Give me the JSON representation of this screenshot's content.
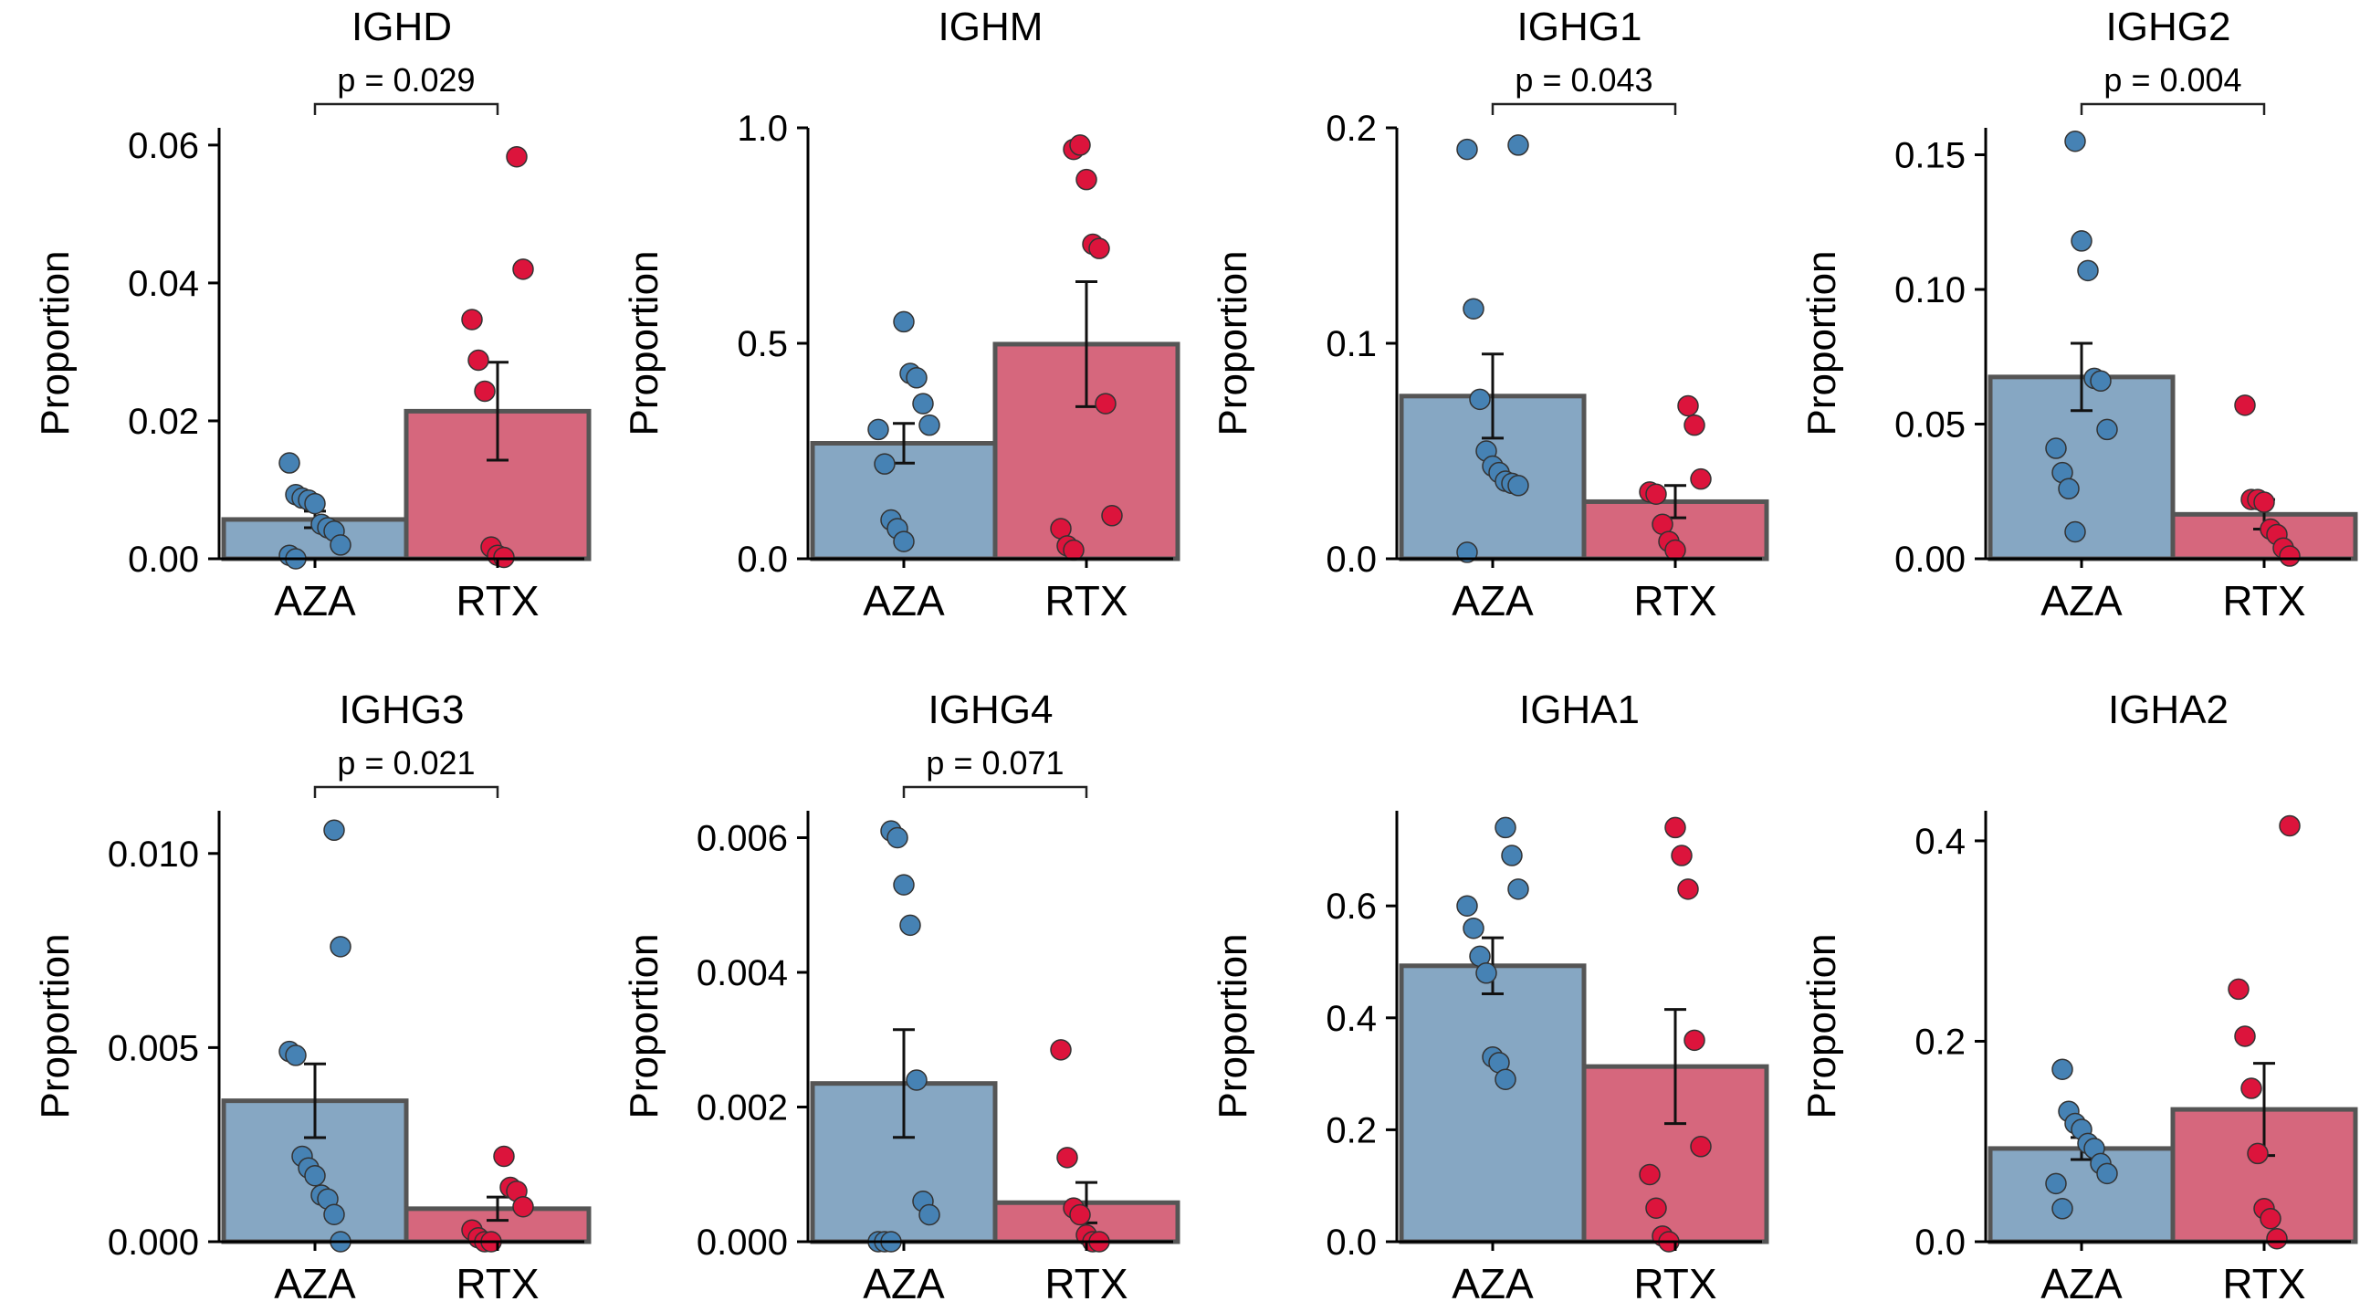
{
  "figure": {
    "y_axis_label": "Proportion",
    "groups": [
      "AZA",
      "RTX"
    ],
    "group_colors": {
      "AZA": "#86a7c3",
      "RTX": "#d6677d"
    },
    "point_colors": {
      "AZA": "#4682b4",
      "RTX": "#dc143c"
    },
    "bar_edge_color": "#555555"
  },
  "chart_data": [
    {
      "type": "bar",
      "title": "IGHD",
      "categories": [
        "AZA",
        "RTX"
      ],
      "values": [
        0.0057,
        0.0214
      ],
      "errors": [
        0.0012,
        0.0071
      ],
      "points": [
        [
          0.0139,
          0.0093,
          0.0088,
          0.0085,
          0.008,
          0.005,
          0.0045,
          0.004,
          0.002,
          0.0005,
          0.0
        ],
        [
          0.0583,
          0.042,
          0.0347,
          0.0288,
          0.0243,
          0.0017,
          0.0005,
          0.0002
        ]
      ],
      "ylim": [
        0,
        0.0625
      ],
      "ticks": [
        0,
        0.02,
        0.04,
        0.06
      ],
      "tick_labels": [
        "0.00",
        "0.02",
        "0.04",
        "0.06"
      ],
      "ylabel": "Proportion",
      "pvalue": "p = 0.029"
    },
    {
      "type": "bar",
      "title": "IGHM",
      "categories": [
        "AZA",
        "RTX"
      ],
      "values": [
        0.268,
        0.498
      ],
      "errors": [
        0.046,
        0.145
      ],
      "points": [
        [
          0.55,
          0.43,
          0.42,
          0.36,
          0.31,
          0.3,
          0.22,
          0.09,
          0.07,
          0.04
        ],
        [
          0.95,
          0.96,
          0.88,
          0.73,
          0.72,
          0.36,
          0.1,
          0.07,
          0.03,
          0.02
        ]
      ],
      "ylim": [
        0,
        1.0
      ],
      "ticks": [
        0,
        0.5,
        1.0
      ],
      "tick_labels": [
        "0.0",
        "0.5",
        "1.0"
      ],
      "ylabel": "Proportion",
      "pvalue": ""
    },
    {
      "type": "bar",
      "title": "IGHG1",
      "categories": [
        "AZA",
        "RTX"
      ],
      "values": [
        0.0755,
        0.0265
      ],
      "errors": [
        0.0195,
        0.0075
      ],
      "points": [
        [
          0.192,
          0.19,
          0.116,
          0.074,
          0.05,
          0.043,
          0.04,
          0.036,
          0.035,
          0.034,
          0.003
        ],
        [
          0.071,
          0.062,
          0.037,
          0.031,
          0.03,
          0.016,
          0.008,
          0.004
        ]
      ],
      "ylim": [
        0,
        0.2
      ],
      "ticks": [
        0,
        0.1,
        0.2
      ],
      "tick_labels": [
        "0.0",
        "0.1",
        "0.2"
      ],
      "ylabel": "Proportion",
      "pvalue": "p = 0.043"
    },
    {
      "type": "bar",
      "title": "IGHG2",
      "categories": [
        "AZA",
        "RTX"
      ],
      "values": [
        0.0675,
        0.0165
      ],
      "errors": [
        0.0125,
        0.0055
      ],
      "points": [
        [
          0.155,
          0.118,
          0.107,
          0.067,
          0.066,
          0.048,
          0.041,
          0.032,
          0.026,
          0.01
        ],
        [
          0.057,
          0.022,
          0.022,
          0.021,
          0.011,
          0.009,
          0.004,
          0.001
        ]
      ],
      "ylim": [
        0,
        0.16
      ],
      "ticks": [
        0,
        0.05,
        0.1,
        0.15
      ],
      "tick_labels": [
        "0.00",
        "0.05",
        "0.10",
        "0.15"
      ],
      "ylabel": "Proportion",
      "pvalue": "p = 0.004"
    },
    {
      "type": "bar",
      "title": "IGHG3",
      "categories": [
        "AZA",
        "RTX"
      ],
      "values": [
        0.00363,
        0.00085
      ],
      "errors": [
        0.00095,
        0.0003
      ],
      "points": [
        [
          0.0106,
          0.0076,
          0.0049,
          0.0048,
          0.0022,
          0.0019,
          0.0017,
          0.0012,
          0.0011,
          0.0007,
          0.0
        ],
        [
          0.0022,
          0.0014,
          0.0013,
          0.0009,
          0.0003,
          0.0001,
          0.0,
          0.0
        ]
      ],
      "ylim": [
        0,
        0.0111
      ],
      "ticks": [
        0,
        0.005,
        0.01
      ],
      "tick_labels": [
        "0.000",
        "0.005",
        "0.010"
      ],
      "ylabel": "Proportion",
      "pvalue": "p = 0.021"
    },
    {
      "type": "bar",
      "title": "IGHG4",
      "categories": [
        "AZA",
        "RTX"
      ],
      "values": [
        0.00235,
        0.00058
      ],
      "errors": [
        0.0008,
        0.0003
      ],
      "points": [
        [
          0.0061,
          0.006,
          0.0053,
          0.0047,
          0.0024,
          0.0006,
          0.0004,
          0.0,
          0.0,
          0.0
        ],
        [
          0.00285,
          0.00125,
          0.0005,
          0.0004,
          0.0001,
          0.0,
          0.0
        ]
      ],
      "ylim": [
        0,
        0.0064
      ],
      "ticks": [
        0,
        0.002,
        0.004,
        0.006
      ],
      "tick_labels": [
        "0.000",
        "0.002",
        "0.004",
        "0.006"
      ],
      "ylabel": "Proportion",
      "pvalue": "p = 0.071"
    },
    {
      "type": "bar",
      "title": "IGHA1",
      "categories": [
        "AZA",
        "RTX"
      ],
      "values": [
        0.493,
        0.313
      ],
      "errors": [
        0.05,
        0.102
      ],
      "points": [
        [
          0.74,
          0.69,
          0.63,
          0.6,
          0.56,
          0.51,
          0.48,
          0.33,
          0.32,
          0.29
        ],
        [
          0.74,
          0.69,
          0.63,
          0.36,
          0.17,
          0.12,
          0.06,
          0.01,
          0.0
        ]
      ],
      "ylim": [
        0,
        0.77
      ],
      "ticks": [
        0,
        0.2,
        0.4,
        0.6
      ],
      "tick_labels": [
        "0.0",
        "0.2",
        "0.4",
        "0.6"
      ],
      "ylabel": "Proportion",
      "pvalue": ""
    },
    {
      "type": "bar",
      "title": "IGHA2",
      "categories": [
        "AZA",
        "RTX"
      ],
      "values": [
        0.093,
        0.132
      ],
      "errors": [
        0.011,
        0.046
      ],
      "points": [
        [
          0.172,
          0.13,
          0.118,
          0.112,
          0.098,
          0.093,
          0.078,
          0.068,
          0.058,
          0.033
        ],
        [
          0.415,
          0.252,
          0.205,
          0.153,
          0.088,
          0.033,
          0.023,
          0.003
        ]
      ],
      "ylim": [
        0,
        0.43
      ],
      "ticks": [
        0,
        0.2,
        0.4
      ],
      "tick_labels": [
        "0.0",
        "0.2",
        "0.4"
      ],
      "ylabel": "Proportion",
      "pvalue": ""
    }
  ]
}
